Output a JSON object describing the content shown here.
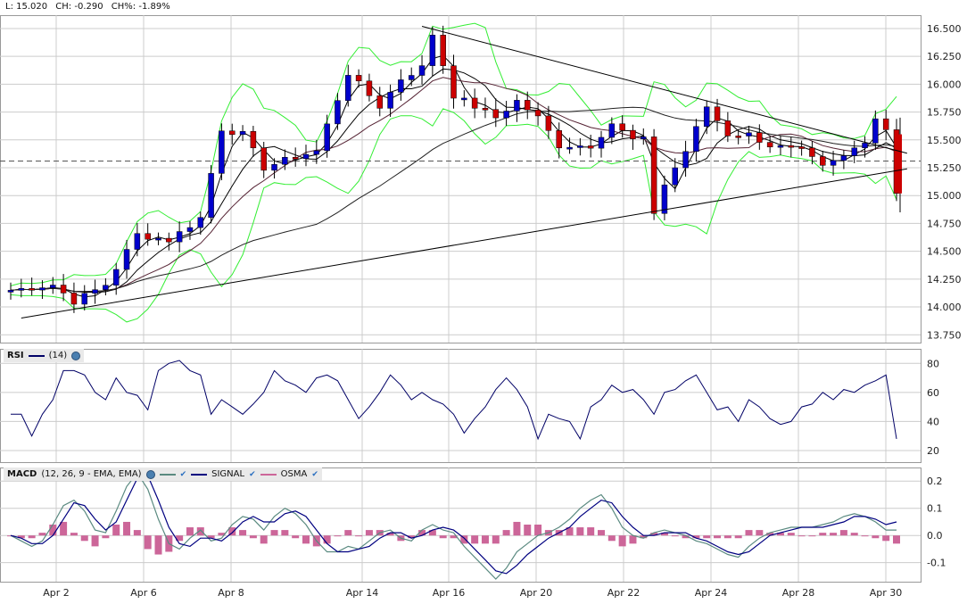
{
  "header": {
    "last": "L: 15.020",
    "change": "CH: -0.290",
    "change_pct": "CH%: -1.89%"
  },
  "panels": {
    "rsi": {
      "name": "RSI",
      "params": "(14)"
    },
    "macd": {
      "name": "MACD",
      "params": "(12, 26, 9 - EMA, EMA)",
      "signal_label": "SIGNAL",
      "osma_label": "OSMA"
    }
  },
  "colors": {
    "up": "#0000cc",
    "down": "#cc0000",
    "bands": "#33ee33",
    "ma": "#000000",
    "rsi": "#000066",
    "macd": "#5a8a80",
    "signal": "#000080",
    "osma": "#cc6699",
    "grid": "#cccccc"
  },
  "chart_data": [
    {
      "type": "candlestick",
      "x_ticks": [
        "Apr 2",
        "Apr 6",
        "Apr 8",
        "Apr 14",
        "Apr 16",
        "Apr 20",
        "Apr 22",
        "Apr 24",
        "Apr 28",
        "Apr 30"
      ],
      "y_ticks": [
        "16.500",
        "16.250",
        "16.000",
        "15.750",
        "15.500",
        "15.250",
        "15.000",
        "14.750",
        "14.500",
        "14.250",
        "14.000",
        "13.750"
      ],
      "ylim": [
        13.68,
        16.62
      ],
      "grid": true,
      "reference_level": 15.31,
      "price_path": [
        [
          0,
          14.15
        ],
        [
          4,
          14.2
        ],
        [
          6,
          14.05
        ],
        [
          9,
          14.2
        ],
        [
          12,
          14.65
        ],
        [
          15,
          14.6
        ],
        [
          18,
          14.8
        ],
        [
          20,
          15.6
        ],
        [
          22,
          15.55
        ],
        [
          24,
          15.25
        ],
        [
          27,
          15.35
        ],
        [
          29,
          15.4
        ],
        [
          32,
          16.1
        ],
        [
          35,
          15.8
        ],
        [
          37,
          16.05
        ],
        [
          39,
          16.15
        ],
        [
          40,
          16.45
        ],
        [
          42,
          15.9
        ],
        [
          44,
          15.8
        ],
        [
          46,
          15.7
        ],
        [
          48,
          15.85
        ],
        [
          50,
          15.7
        ],
        [
          52,
          15.45
        ],
        [
          55,
          15.45
        ],
        [
          57,
          15.65
        ],
        [
          59,
          15.5
        ],
        [
          60,
          15.5
        ],
        [
          61,
          14.85
        ],
        [
          62,
          15.1
        ],
        [
          64,
          15.4
        ],
        [
          66,
          15.8
        ],
        [
          68,
          15.55
        ],
        [
          70,
          15.55
        ],
        [
          72,
          15.45
        ],
        [
          75,
          15.4
        ],
        [
          77,
          15.25
        ],
        [
          79,
          15.35
        ],
        [
          81,
          15.5
        ],
        [
          82,
          15.7
        ],
        [
          83,
          15.6
        ],
        [
          84,
          15.1
        ]
      ],
      "trendlines": [
        {
          "name": "upper",
          "points": [
            [
              39,
              16.52
            ],
            [
              85,
              15.38
            ]
          ]
        },
        {
          "name": "lower",
          "points": [
            [
              1,
              13.9
            ],
            [
              85,
              15.24
            ]
          ]
        }
      ],
      "last_price": 15.02
    },
    {
      "type": "line",
      "name": "RSI",
      "y_ticks": [
        "80",
        "60",
        "40",
        "20"
      ],
      "ylim": [
        12,
        90
      ],
      "grid": true,
      "values": [
        45,
        45,
        30,
        45,
        55,
        75,
        75,
        72,
        60,
        55,
        70,
        60,
        58,
        48,
        75,
        80,
        82,
        75,
        72,
        45,
        55,
        50,
        45,
        52,
        60,
        75,
        68,
        65,
        60,
        70,
        72,
        68,
        55,
        42,
        50,
        60,
        72,
        65,
        55,
        60,
        55,
        52,
        45,
        32,
        42,
        50,
        62,
        70,
        62,
        50,
        28,
        45,
        42,
        40,
        28,
        50,
        55,
        65,
        60,
        62,
        55,
        45,
        60,
        62,
        68,
        72,
        60,
        48,
        50,
        40,
        55,
        50,
        42,
        38,
        40,
        50,
        52,
        60,
        55,
        62,
        60,
        65,
        68,
        72,
        28
      ]
    },
    {
      "type": "line",
      "name": "MACD",
      "y_ticks": [
        "0.2",
        "0.1",
        "0.0",
        "-0.1"
      ],
      "ylim": [
        -0.17,
        0.25
      ],
      "grid": true,
      "series_names": [
        "MACD",
        "SIGNAL",
        "OSMA"
      ],
      "macd": [
        0,
        -0.02,
        -0.04,
        -0.02,
        0.04,
        0.11,
        0.13,
        0.09,
        0.02,
        0.01,
        0.09,
        0.18,
        0.23,
        0.17,
        0.06,
        -0.03,
        -0.05,
        -0.01,
        0.02,
        -0.02,
        -0.01,
        0.04,
        0.07,
        0.06,
        0.02,
        0.07,
        0.1,
        0.08,
        0.04,
        -0.02,
        -0.06,
        -0.06,
        -0.04,
        -0.05,
        -0.02,
        0.01,
        0.02,
        -0.01,
        -0.02,
        0.02,
        0.04,
        0.02,
        0.01,
        -0.04,
        -0.08,
        -0.12,
        -0.16,
        -0.12,
        -0.06,
        -0.03,
        0.0,
        0.01,
        0.03,
        0.06,
        0.1,
        0.13,
        0.15,
        0.1,
        0.03,
        0.0,
        -0.01,
        0.01,
        0.02,
        0.01,
        0.0,
        -0.02,
        -0.03,
        -0.05,
        -0.07,
        -0.08,
        -0.04,
        -0.01,
        0.01,
        0.02,
        0.03,
        0.03,
        0.03,
        0.04,
        0.05,
        0.07,
        0.08,
        0.07,
        0.05,
        0.02,
        0.02
      ],
      "signal": [
        0,
        -0.01,
        -0.03,
        -0.03,
        0.0,
        0.06,
        0.12,
        0.11,
        0.06,
        0.02,
        0.05,
        0.13,
        0.21,
        0.22,
        0.13,
        0.03,
        -0.03,
        -0.04,
        -0.01,
        -0.01,
        -0.02,
        0.01,
        0.05,
        0.07,
        0.05,
        0.05,
        0.08,
        0.09,
        0.07,
        0.02,
        -0.03,
        -0.06,
        -0.06,
        -0.05,
        -0.04,
        -0.01,
        0.01,
        0.01,
        -0.01,
        0.0,
        0.02,
        0.03,
        0.02,
        -0.01,
        -0.05,
        -0.09,
        -0.13,
        -0.14,
        -0.11,
        -0.07,
        -0.04,
        -0.01,
        0.01,
        0.03,
        0.07,
        0.1,
        0.13,
        0.12,
        0.07,
        0.03,
        0.0,
        0.0,
        0.01,
        0.01,
        0.01,
        -0.01,
        -0.02,
        -0.04,
        -0.06,
        -0.07,
        -0.06,
        -0.03,
        0.0,
        0.01,
        0.02,
        0.03,
        0.03,
        0.03,
        0.04,
        0.05,
        0.07,
        0.07,
        0.06,
        0.04,
        0.05
      ],
      "osma": [
        0,
        -0.01,
        -0.01,
        0.01,
        0.04,
        0.05,
        0.01,
        -0.02,
        -0.04,
        -0.01,
        0.04,
        0.05,
        0.02,
        -0.05,
        -0.07,
        -0.06,
        -0.02,
        0.03,
        0.03,
        -0.01,
        0.01,
        0.03,
        0.02,
        -0.01,
        -0.03,
        0.02,
        0.02,
        -0.01,
        -0.03,
        -0.04,
        -0.03,
        0.0,
        0.02,
        0.0,
        0.02,
        0.02,
        0.01,
        -0.02,
        -0.01,
        0.02,
        0.02,
        -0.01,
        -0.01,
        -0.03,
        -0.03,
        -0.03,
        -0.03,
        0.02,
        0.05,
        0.04,
        0.04,
        0.02,
        0.02,
        0.03,
        0.03,
        0.03,
        0.02,
        -0.02,
        -0.04,
        -0.03,
        -0.01,
        0.01,
        0.01,
        0.0,
        -0.01,
        -0.01,
        -0.01,
        -0.01,
        -0.01,
        -0.01,
        0.02,
        0.02,
        0.01,
        0.01,
        0.01,
        0.0,
        0.0,
        0.01,
        0.01,
        0.02,
        0.01,
        0.0,
        -0.01,
        -0.02,
        -0.03
      ]
    }
  ]
}
